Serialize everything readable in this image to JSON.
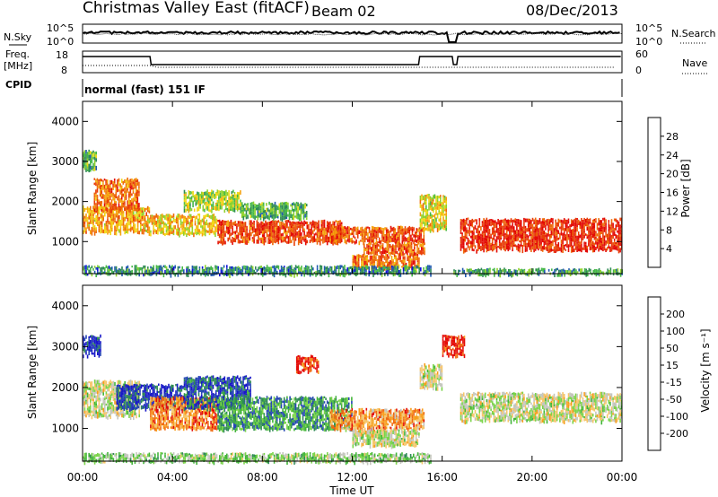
{
  "header": {
    "title": "Christmas Valley East (fitACF)",
    "beam": "Beam 02",
    "date": "08/Dec/2013"
  },
  "top_panels": {
    "nsky_label": "N.Sky",
    "nsearch_label": "N.Search",
    "noise_ticks_left": [
      "10^5",
      "10^0"
    ],
    "noise_ticks_right": [
      "10^5",
      "10^0"
    ],
    "freq_label": "Freq.",
    "freq_unit": "[MHz]",
    "freq_ticks": [
      "18",
      "8"
    ],
    "nave_label": "Nave",
    "nave_ticks": [
      "60",
      "0"
    ],
    "cpid_label": "CPID",
    "cpid_text": "normal (fast) 151 IF"
  },
  "colors": {
    "power_scale": [
      "#1010dd",
      "#205ab0",
      "#2f8a55",
      "#45b848",
      "#8fd12c",
      "#f1d814",
      "#f5a30e",
      "#ee6a0b",
      "#e83e08",
      "#e30b05"
    ],
    "velocity_scale": [
      "#e40c08",
      "#f06a12",
      "#f79d1b",
      "#f5c66c",
      "#c4c6bd",
      "#7bd44a",
      "#43b53a",
      "#2f8a55",
      "#2446b3",
      "#1818c8"
    ]
  },
  "chart_data": [
    {
      "type": "heatmap",
      "name": "Power",
      "xlabel": "",
      "ylabel": "Slant Range [km]",
      "x_ticks": [
        "00:00",
        "04:00",
        "08:00",
        "12:00",
        "16:00",
        "20:00",
        "00:00"
      ],
      "xlim_hours": [
        0,
        24
      ],
      "y_ticks": [
        1000,
        2000,
        3000,
        4000
      ],
      "ylim": [
        200,
        4500
      ],
      "colorbar": {
        "label": "Power [dB]",
        "ticks": [
          4,
          8,
          12,
          16,
          20,
          24,
          28
        ]
      },
      "bands": [
        {
          "t0": 0.0,
          "t1": 3.0,
          "r0": 1250,
          "r1": 1900,
          "level": 0.65
        },
        {
          "t0": 0.5,
          "t1": 2.5,
          "r0": 1800,
          "r1": 2600,
          "level": 0.75
        },
        {
          "t0": 0.0,
          "t1": 0.6,
          "r0": 2800,
          "r1": 3300,
          "level": 0.35
        },
        {
          "t0": 3.0,
          "t1": 6.0,
          "r0": 1200,
          "r1": 1700,
          "level": 0.6
        },
        {
          "t0": 4.5,
          "t1": 7.0,
          "r0": 1800,
          "r1": 2300,
          "level": 0.45
        },
        {
          "t0": 6.0,
          "t1": 11.5,
          "r0": 1000,
          "r1": 1550,
          "level": 0.85
        },
        {
          "t0": 7.0,
          "t1": 10.0,
          "r0": 1600,
          "r1": 2000,
          "level": 0.35
        },
        {
          "t0": 11.0,
          "t1": 15.2,
          "r0": 1000,
          "r1": 1400,
          "level": 0.8
        },
        {
          "t0": 12.5,
          "t1": 15.2,
          "r0": 700,
          "r1": 1000,
          "level": 0.8
        },
        {
          "t0": 12.0,
          "t1": 15.0,
          "r0": 350,
          "r1": 700,
          "level": 0.75
        },
        {
          "t0": 15.0,
          "t1": 16.2,
          "r0": 1300,
          "r1": 2200,
          "level": 0.55
        },
        {
          "t0": 16.8,
          "t1": 24.0,
          "r0": 800,
          "r1": 1600,
          "level": 0.9
        },
        {
          "t0": 0.0,
          "t1": 15.5,
          "r0": 200,
          "r1": 420,
          "level": 0.25
        },
        {
          "t0": 16.5,
          "t1": 24.0,
          "r0": 200,
          "r1": 350,
          "level": 0.3
        }
      ]
    },
    {
      "type": "heatmap",
      "name": "Velocity",
      "xlabel": "Time UT",
      "ylabel": "Slant Range [km]",
      "x_ticks": [
        "00:00",
        "04:00",
        "08:00",
        "12:00",
        "16:00",
        "20:00",
        "00:00"
      ],
      "xlim_hours": [
        0,
        24
      ],
      "y_ticks": [
        1000,
        2000,
        3000,
        4000
      ],
      "ylim": [
        200,
        4500
      ],
      "colorbar": {
        "label": "Velocity [m s⁻¹]",
        "ticks": [
          200,
          100,
          50,
          15,
          -15,
          -50,
          -100,
          -200
        ]
      },
      "bands": [
        {
          "t0": 0.0,
          "t1": 2.5,
          "r0": 1300,
          "r1": 2200,
          "level": 0.45
        },
        {
          "t0": 1.5,
          "t1": 4.5,
          "r0": 1500,
          "r1": 2100,
          "level": 0.9
        },
        {
          "t0": 0.0,
          "t1": 0.8,
          "r0": 2800,
          "r1": 3300,
          "level": 0.9
        },
        {
          "t0": 3.0,
          "t1": 6.0,
          "r0": 1000,
          "r1": 1800,
          "level": 0.2
        },
        {
          "t0": 4.5,
          "t1": 7.5,
          "r0": 1500,
          "r1": 2300,
          "level": 0.85
        },
        {
          "t0": 6.0,
          "t1": 12.0,
          "r0": 1000,
          "r1": 1800,
          "level": 0.7
        },
        {
          "t0": 9.5,
          "t1": 10.5,
          "r0": 2400,
          "r1": 2800,
          "level": 0.05
        },
        {
          "t0": 11.0,
          "t1": 15.2,
          "r0": 1000,
          "r1": 1500,
          "level": 0.25
        },
        {
          "t0": 12.0,
          "t1": 15.0,
          "r0": 600,
          "r1": 1000,
          "level": 0.45
        },
        {
          "t0": 15.0,
          "t1": 16.0,
          "r0": 2000,
          "r1": 2600,
          "level": 0.45
        },
        {
          "t0": 16.0,
          "t1": 17.0,
          "r0": 2800,
          "r1": 3300,
          "level": 0.05
        },
        {
          "t0": 16.8,
          "t1": 24.0,
          "r0": 1200,
          "r1": 1900,
          "level": 0.45
        },
        {
          "t0": 0.0,
          "t1": 15.5,
          "r0": 200,
          "r1": 420,
          "level": 0.55
        }
      ]
    }
  ]
}
